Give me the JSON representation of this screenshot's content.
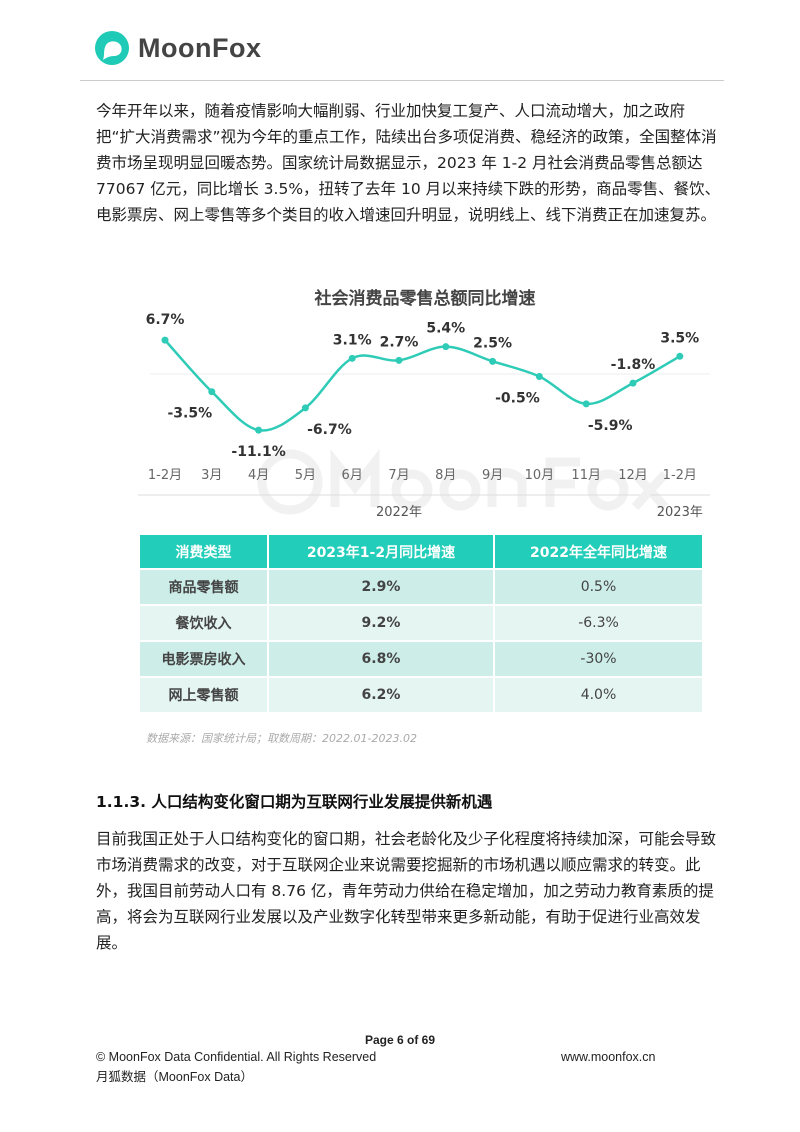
{
  "header": {
    "logo_text": "MoonFox",
    "brand_color": "#1fcbb6"
  },
  "intro_paragraph": "今年开年以来，随着疫情影响大幅削弱、行业加快复工复产、人口流动增大，加之政府把“扩大消费需求”视为今年的重点工作，陆续出台多项促消费、稳经济的政策，全国整体消费市场呈现明显回暖态势。国家统计局数据显示，2023 年 1-2 月社会消费品零售总额达 77067 亿元，同比增长 3.5%，扭转了去年 10 月以来持续下跌的形势，商品零售、餐饮、电影票房、网上零售等多个类目的收入增速回升明显，说明线上、线下消费正在加速复苏。",
  "chart_data": {
    "type": "line",
    "title": "社会消费品零售总额同比增速",
    "categories": [
      "1-2月",
      "3月",
      "4月",
      "5月",
      "6月",
      "7月",
      "8月",
      "9月",
      "10月",
      "11月",
      "12月",
      "1-2月"
    ],
    "values": [
      6.7,
      -3.5,
      -11.1,
      -6.7,
      3.1,
      2.7,
      5.4,
      2.5,
      -0.5,
      -5.9,
      -1.8,
      3.5
    ],
    "value_labels": [
      "6.7%",
      "-3.5%",
      "-11.1%",
      "-6.7%",
      "3.1%",
      "2.7%",
      "5.4%",
      "2.5%",
      "-0.5%",
      "-5.9%",
      "-1.8%",
      "3.5%"
    ],
    "year_groups": [
      {
        "label": "2022年",
        "count": 11
      },
      {
        "label": "2023年",
        "count": 1
      }
    ],
    "unit": "%",
    "line_color": "#2ecbb7",
    "watermark": "MoonFox"
  },
  "table": {
    "headers": [
      "消费类型",
      "2023年1-2月同比增速",
      "2022年全年同比增速"
    ],
    "rows": [
      [
        "商品零售额",
        "2.9%",
        "0.5%"
      ],
      [
        "餐饮收入",
        "9.2%",
        "-6.3%"
      ],
      [
        "电影票房收入",
        "6.8%",
        "-30%"
      ],
      [
        "网上零售额",
        "6.2%",
        "4.0%"
      ]
    ]
  },
  "source_note": "数据来源：国家统计局；取数周期：2022.01-2023.02",
  "section_heading": "1.1.3. 人口结构变化窗口期为互联网行业发展提供新机遇",
  "section_paragraph": "目前我国正处于人口结构变化的窗口期，社会老龄化及少子化程度将持续加深，可能会导致市场消费需求的改变，对于互联网企业来说需要挖掘新的市场机遇以顺应需求的转变。此外，我国目前劳动人口有 8.76 亿，青年劳动力供给在稳定增加，加之劳动力教育素质的提高，将会为互联网行业发展以及产业数字化转型带来更多新动能，有助于促进行业高效发展。",
  "footer": {
    "page": "Page  6 of 69",
    "copyright": "© MoonFox Data Confidential. All Rights Reserved",
    "website": "www.moonfox.cn",
    "company": "月狐数据（MoonFox Data）"
  }
}
